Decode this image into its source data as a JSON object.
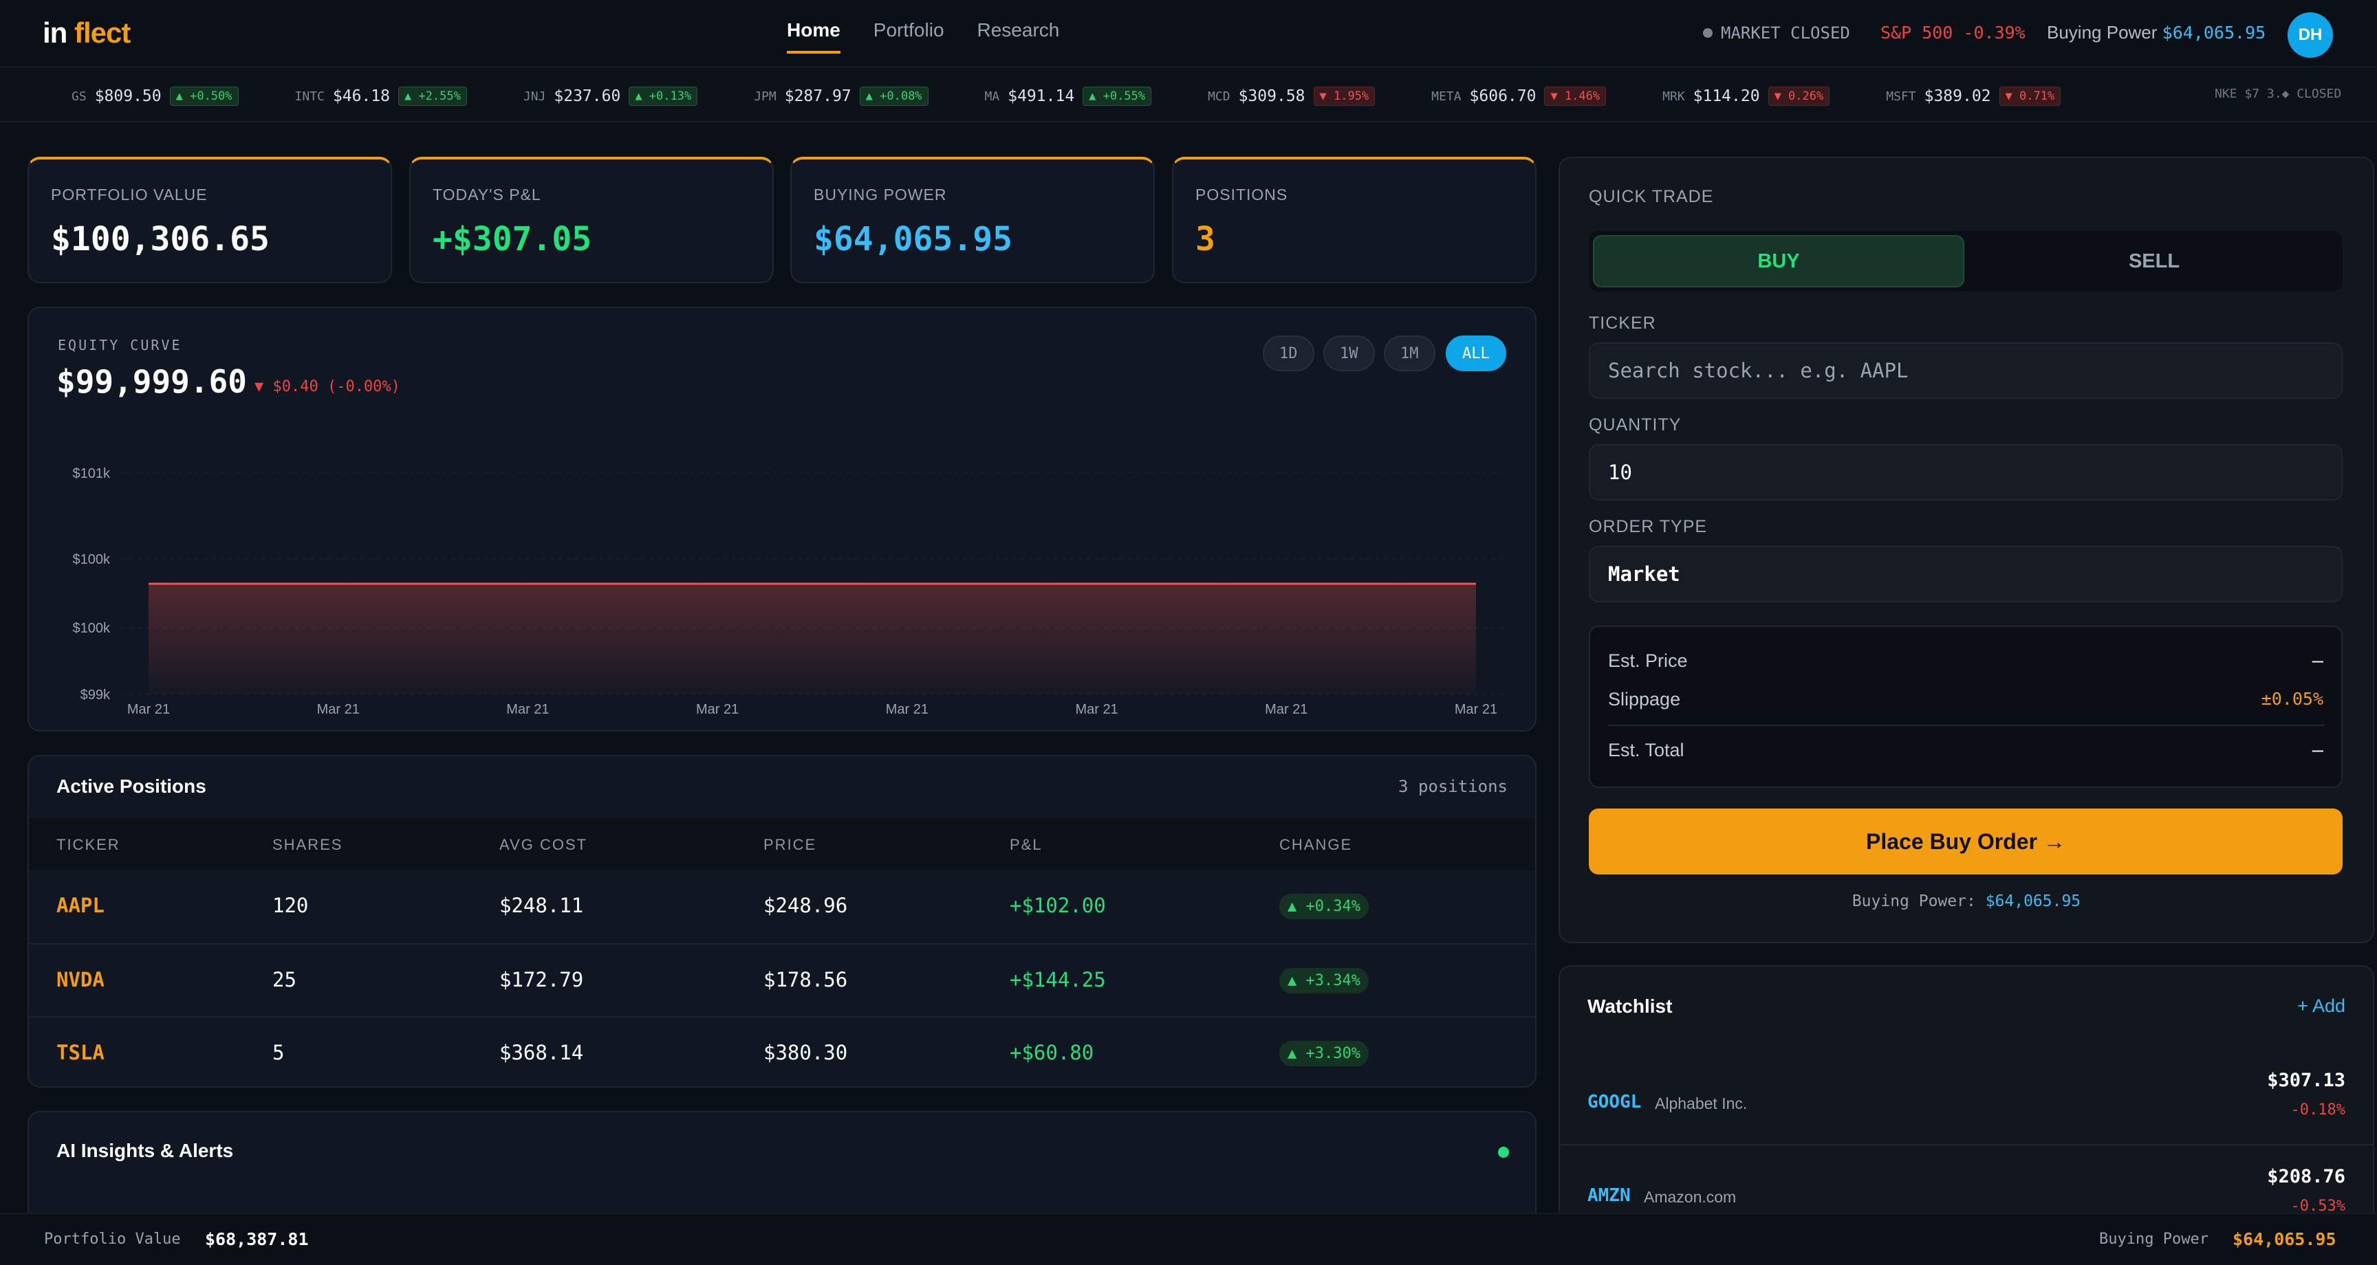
{
  "nav": {
    "logo_a": "in",
    "logo_b": "flect",
    "links": [
      "Home",
      "Portfolio",
      "Research"
    ],
    "market_status": "MARKET CLOSED",
    "sp500": "S&P 500 -0.39%",
    "buying_power_label": "Buying Power",
    "buying_power_value": "$64,065.95",
    "avatar": "DH"
  },
  "ticker_tape": {
    "items": [
      {
        "sym": "GS",
        "price": "$809.50",
        "change": "▲ +0.50%",
        "dir": "up"
      },
      {
        "sym": "INTC",
        "price": "$46.18",
        "change": "▲ +2.55%",
        "dir": "up"
      },
      {
        "sym": "JNJ",
        "price": "$237.60",
        "change": "▲ +0.13%",
        "dir": "up"
      },
      {
        "sym": "JPM",
        "price": "$287.97",
        "change": "▲ +0.08%",
        "dir": "up"
      },
      {
        "sym": "MA",
        "price": "$491.14",
        "change": "▲ +0.55%",
        "dir": "up"
      },
      {
        "sym": "MCD",
        "price": "$309.58",
        "change": "▼ 1.95%",
        "dir": "down"
      },
      {
        "sym": "META",
        "price": "$606.70",
        "change": "▼ 1.46%",
        "dir": "down"
      },
      {
        "sym": "MRK",
        "price": "$114.20",
        "change": "▼ 0.26%",
        "dir": "down"
      },
      {
        "sym": "MSFT",
        "price": "$389.02",
        "change": "▼ 0.71%",
        "dir": "down"
      }
    ],
    "tail": "NKE $7 3.◆ CLOSED"
  },
  "stats": [
    {
      "label": "PORTFOLIO VALUE",
      "value": "$100,306.65",
      "color": "#ffffff"
    },
    {
      "label": "TODAY'S P&L",
      "value": "+$307.05",
      "color": "#22e07a"
    },
    {
      "label": "BUYING POWER",
      "value": "$64,065.95",
      "color": "#38bdf8"
    },
    {
      "label": "POSITIONS",
      "value": "3",
      "color": "#f29d12"
    }
  ],
  "equity": {
    "label": "EQUITY CURVE",
    "value": "$99,999.60",
    "change": "▼ $0.40 (-0.00%)",
    "ranges": [
      "1D",
      "1W",
      "1M",
      "ALL"
    ],
    "active_range": "ALL"
  },
  "chart_data": {
    "type": "area",
    "title": "EQUITY CURVE",
    "xlabel": "",
    "ylabel": "",
    "ytick_labels": [
      "$101k",
      "$100k",
      "$100k",
      "$99k"
    ],
    "x": [
      "Mar 21",
      "Mar 21",
      "Mar 21",
      "Mar 21",
      "Mar 21",
      "Mar 21",
      "Mar 21",
      "Mar 21"
    ],
    "series": [
      {
        "values": [
          99999.6,
          99999.6,
          99999.6,
          99999.6,
          99999.6,
          99999.6,
          99999.6,
          99999.6
        ],
        "color": "#ef5350"
      }
    ],
    "grid": true
  },
  "positions": {
    "title": "Active Positions",
    "count_label": "3 positions",
    "columns": [
      "TICKER",
      "SHARES",
      "AVG COST",
      "PRICE",
      "P&L",
      "CHANGE"
    ],
    "rows": [
      {
        "ticker": "AAPL",
        "shares": "120",
        "avg": "$248.11",
        "price": "$248.96",
        "pl": "+$102.00",
        "chg": "▲ +0.34%"
      },
      {
        "ticker": "NVDA",
        "shares": "25",
        "avg": "$172.79",
        "price": "$178.56",
        "pl": "+$144.25",
        "chg": "▲ +3.34%"
      },
      {
        "ticker": "TSLA",
        "shares": "5",
        "avg": "$368.14",
        "price": "$380.30",
        "pl": "+$60.80",
        "chg": "▲ +3.30%"
      }
    ]
  },
  "ai": {
    "title": "AI Insights & Alerts"
  },
  "trade": {
    "title": "QUICK TRADE",
    "buy": "BUY",
    "sell": "SELL",
    "ticker_label": "TICKER",
    "ticker_placeholder": "Search stock... e.g. AAPL",
    "qty_label": "QUANTITY",
    "qty_value": "10",
    "order_label": "ORDER TYPE",
    "order_value": "Market",
    "est_price_label": "Est. Price",
    "est_price_value": "—",
    "slippage_label": "Slippage",
    "slippage_value": "±0.05%",
    "est_total_label": "Est. Total",
    "est_total_value": "—",
    "submit": "Place Buy Order →",
    "bp_label": "Buying Power:",
    "bp_value": "$64,065.95"
  },
  "watchlist": {
    "title": "Watchlist",
    "add": "+ Add",
    "items": [
      {
        "sym": "GOOGL",
        "name": "Alphabet Inc.",
        "price": "$307.13",
        "change": "-0.18%"
      },
      {
        "sym": "AMZN",
        "name": "Amazon.com",
        "price": "$208.76",
        "change": "-0.53%"
      }
    ]
  },
  "footer": {
    "left_label": "Portfolio Value",
    "left_value": "$68,387.81",
    "right_label": "Buying Power",
    "right_value": "$64,065.95"
  }
}
